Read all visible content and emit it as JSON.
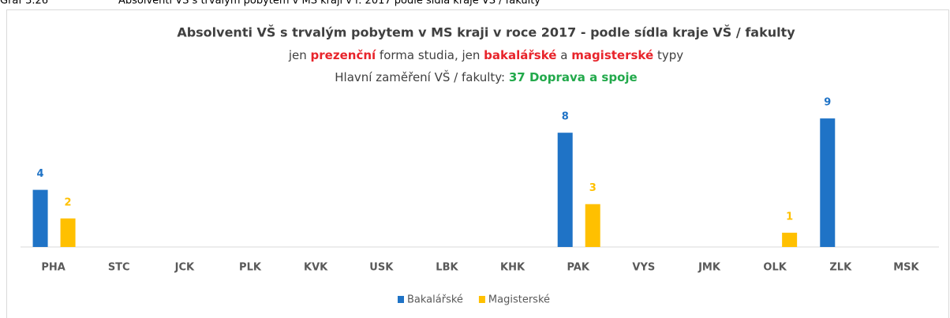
{
  "chart_data": {
    "type": "bar",
    "caption": "Graf 3.26",
    "caption_text": "Absolventi VŠ s trvalým pobytem v MS kraji v r. 2017 podle sídla kraje VŠ / fakulty",
    "title": "Absolventi VŠ s trvalým pobytem v MS kraji v roce 2017 - podle sídla kraje VŠ / fakulty",
    "subtitle_parts": [
      {
        "text": "jen ",
        "color": "#404040"
      },
      {
        "text": "prezenční",
        "color": "#e8242b"
      },
      {
        "text": " forma studia, jen ",
        "color": "#404040"
      },
      {
        "text": "bakalářské",
        "color": "#e8242b"
      },
      {
        "text": " a ",
        "color": "#404040"
      },
      {
        "text": "magisterské",
        "color": "#e8242b"
      },
      {
        "text": " typy",
        "color": "#404040"
      }
    ],
    "focus_parts": [
      {
        "text": "Hlavní zaměření VŠ / fakulty: ",
        "color": "#404040"
      },
      {
        "text": "37 Doprava a spoje",
        "color": "#22a94b"
      }
    ],
    "categories": [
      "PHA",
      "STC",
      "JCK",
      "PLK",
      "KVK",
      "USK",
      "LBK",
      "KHK",
      "PAK",
      "VYS",
      "JMK",
      "OLK",
      "ZLK",
      "MSK"
    ],
    "series": [
      {
        "name": "Bakalářské",
        "color": "#1f73c6",
        "values": [
          4,
          null,
          null,
          null,
          null,
          null,
          null,
          null,
          8,
          null,
          null,
          null,
          9,
          null
        ]
      },
      {
        "name": "Magisterské",
        "color": "#ffc000",
        "values": [
          2,
          null,
          null,
          null,
          null,
          null,
          null,
          null,
          3,
          null,
          null,
          1,
          null,
          null
        ]
      }
    ],
    "ylim": [
      0,
      10
    ],
    "legend": "bottom"
  }
}
